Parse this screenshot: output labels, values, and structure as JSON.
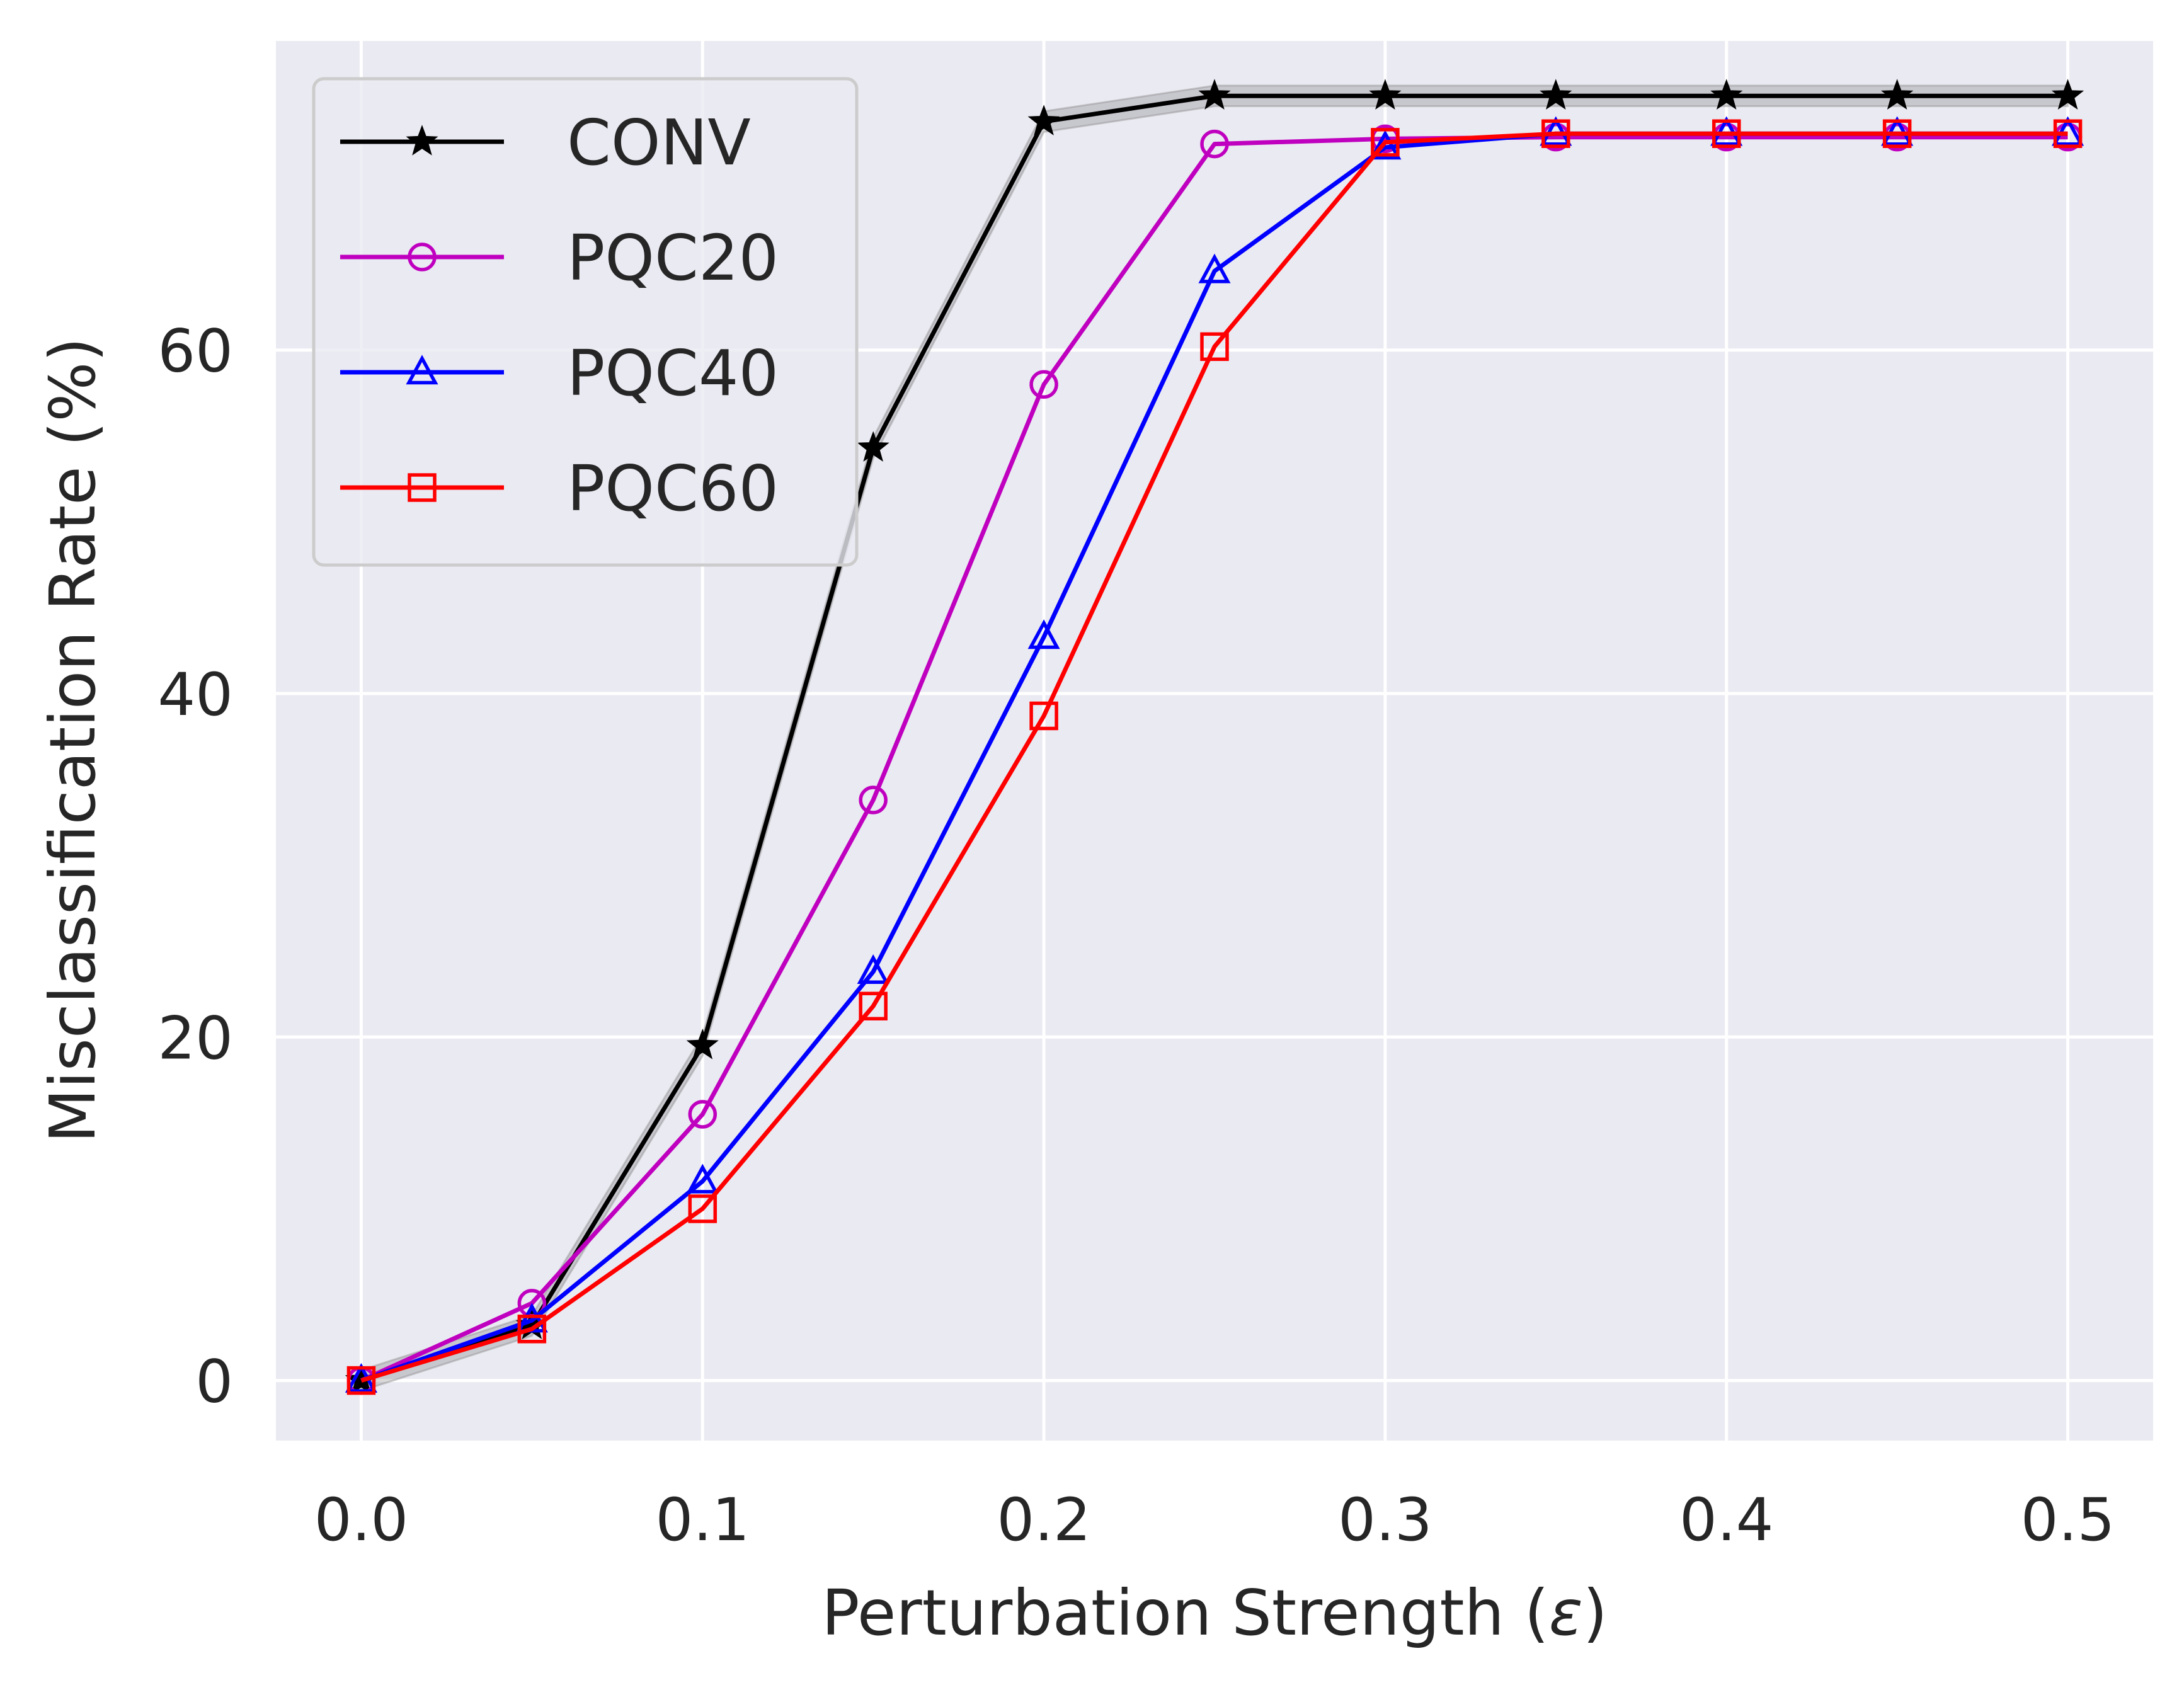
{
  "chart_data": {
    "type": "line",
    "title": "",
    "xlabel": "Perturbation Strength (",
    "xlabel_symbol": "ε",
    "xlabel_suffix": ")",
    "ylabel": "Misclassification Rate (%)",
    "xlim": [
      -0.025,
      0.525
    ],
    "ylim": [
      -3.5,
      78
    ],
    "xticks": [
      0.0,
      0.1,
      0.2,
      0.3,
      0.4,
      0.5
    ],
    "xtick_labels": [
      "0.0",
      "0.1",
      "0.2",
      "0.3",
      "0.4",
      "0.5"
    ],
    "xgrid": [
      0.0,
      0.1,
      0.2,
      0.3,
      0.4,
      0.5
    ],
    "yticks": [
      0,
      20,
      40,
      60
    ],
    "ytick_labels": [
      "0",
      "20",
      "40",
      "60"
    ],
    "grid": true,
    "legend_position": "top-left",
    "x": [
      0.0,
      0.05,
      0.1,
      0.15,
      0.2,
      0.25,
      0.3,
      0.35,
      0.4,
      0.45,
      0.5
    ],
    "series": [
      {
        "name": "CONV",
        "color": "#000000",
        "marker": "star",
        "values": [
          0,
          3.2,
          19.5,
          54.3,
          73.3,
          74.8,
          74.8,
          74.8,
          74.8,
          74.8,
          74.8
        ],
        "band": 0.6
      },
      {
        "name": "PQC20",
        "color": "#bf00bf",
        "marker": "circle",
        "values": [
          0,
          4.5,
          15.5,
          33.8,
          58.0,
          72.0,
          72.3,
          72.4,
          72.4,
          72.4,
          72.4
        ]
      },
      {
        "name": "PQC40",
        "color": "#0000ff",
        "marker": "triangle",
        "values": [
          0,
          3.5,
          11.6,
          23.8,
          43.3,
          64.6,
          71.8,
          72.6,
          72.6,
          72.6,
          72.6
        ]
      },
      {
        "name": "PQC60",
        "color": "#ff0000",
        "marker": "square",
        "values": [
          0,
          3.0,
          10.0,
          21.8,
          38.7,
          60.2,
          72.1,
          72.6,
          72.6,
          72.6,
          72.6
        ]
      }
    ],
    "colors": {
      "plot_background": "#eaeaf2",
      "grid": "#ffffff",
      "text": "#262626",
      "legend_border": "#cccccc"
    }
  }
}
